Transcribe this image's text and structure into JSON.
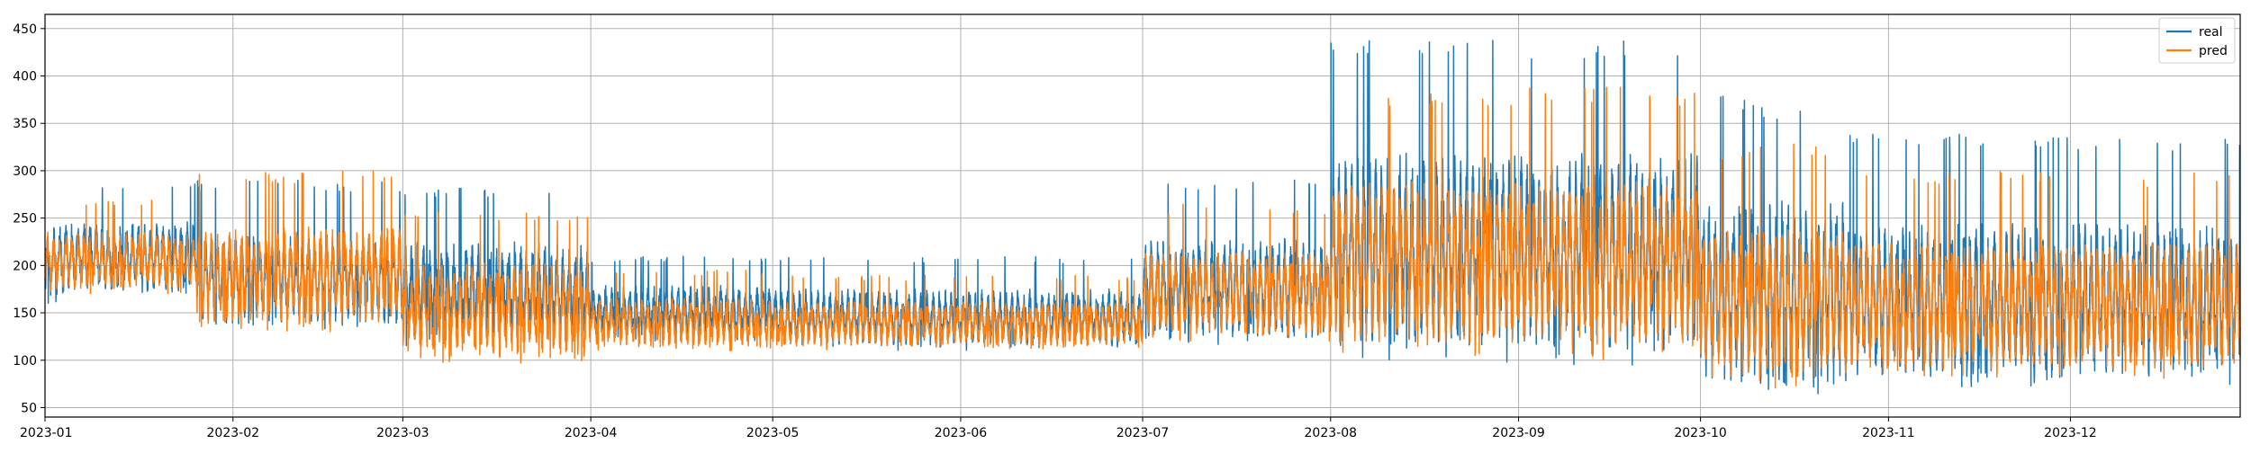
{
  "chart_data": {
    "type": "line",
    "title": "",
    "xlabel": "",
    "ylabel": "",
    "x_tick_labels": [
      "2023-01",
      "2023-02",
      "2023-03",
      "2023-04",
      "2023-05",
      "2023-06",
      "2023-07",
      "2023-08",
      "2023-09",
      "2023-10",
      "2023-11",
      "2023-12"
    ],
    "y_ticks": [
      50,
      100,
      150,
      200,
      250,
      300,
      350,
      400,
      450
    ],
    "ylim": [
      40,
      465
    ],
    "xlim": [
      "2023-01-01",
      "2023-12-29"
    ],
    "grid": true,
    "legend_position": "top-right",
    "series": [
      {
        "name": "real",
        "color": "#1f77b4",
        "periods": [
          {
            "start": "2023-01-01",
            "end": "2023-01-05",
            "low": 160,
            "high": 290
          },
          {
            "start": "2023-01-05",
            "end": "2023-01-26",
            "low": 165,
            "high": 290
          },
          {
            "start": "2023-01-26",
            "end": "2023-03-01",
            "low": 130,
            "high": 290
          },
          {
            "start": "2023-03-01",
            "end": "2023-04-01",
            "low": 115,
            "high": 285
          },
          {
            "start": "2023-04-01",
            "end": "2023-05-01",
            "low": 120,
            "high": 210
          },
          {
            "start": "2023-05-01",
            "end": "2023-07-01",
            "low": 110,
            "high": 210
          },
          {
            "start": "2023-07-01",
            "end": "2023-08-01",
            "low": 115,
            "high": 290
          },
          {
            "start": "2023-08-01",
            "end": "2023-10-01",
            "low": 95,
            "high": 440
          },
          {
            "start": "2023-10-01",
            "end": "2023-10-25",
            "low": 60,
            "high": 380
          },
          {
            "start": "2023-10-25",
            "end": "2023-12-29",
            "low": 70,
            "high": 340
          }
        ]
      },
      {
        "name": "pred",
        "color": "#ff7f0e",
        "periods": [
          {
            "start": "2023-01-01",
            "end": "2023-01-26",
            "low": 170,
            "high": 270
          },
          {
            "start": "2023-01-26",
            "end": "2023-03-01",
            "low": 130,
            "high": 300
          },
          {
            "start": "2023-03-01",
            "end": "2023-04-01",
            "low": 95,
            "high": 260
          },
          {
            "start": "2023-04-01",
            "end": "2023-05-01",
            "low": 110,
            "high": 195
          },
          {
            "start": "2023-05-01",
            "end": "2023-07-01",
            "low": 110,
            "high": 190
          },
          {
            "start": "2023-07-01",
            "end": "2023-08-01",
            "low": 120,
            "high": 265
          },
          {
            "start": "2023-08-01",
            "end": "2023-10-01",
            "low": 100,
            "high": 390
          },
          {
            "start": "2023-10-01",
            "end": "2023-10-25",
            "low": 70,
            "high": 330
          },
          {
            "start": "2023-10-25",
            "end": "2023-12-29",
            "low": 80,
            "high": 300
          }
        ]
      }
    ]
  }
}
